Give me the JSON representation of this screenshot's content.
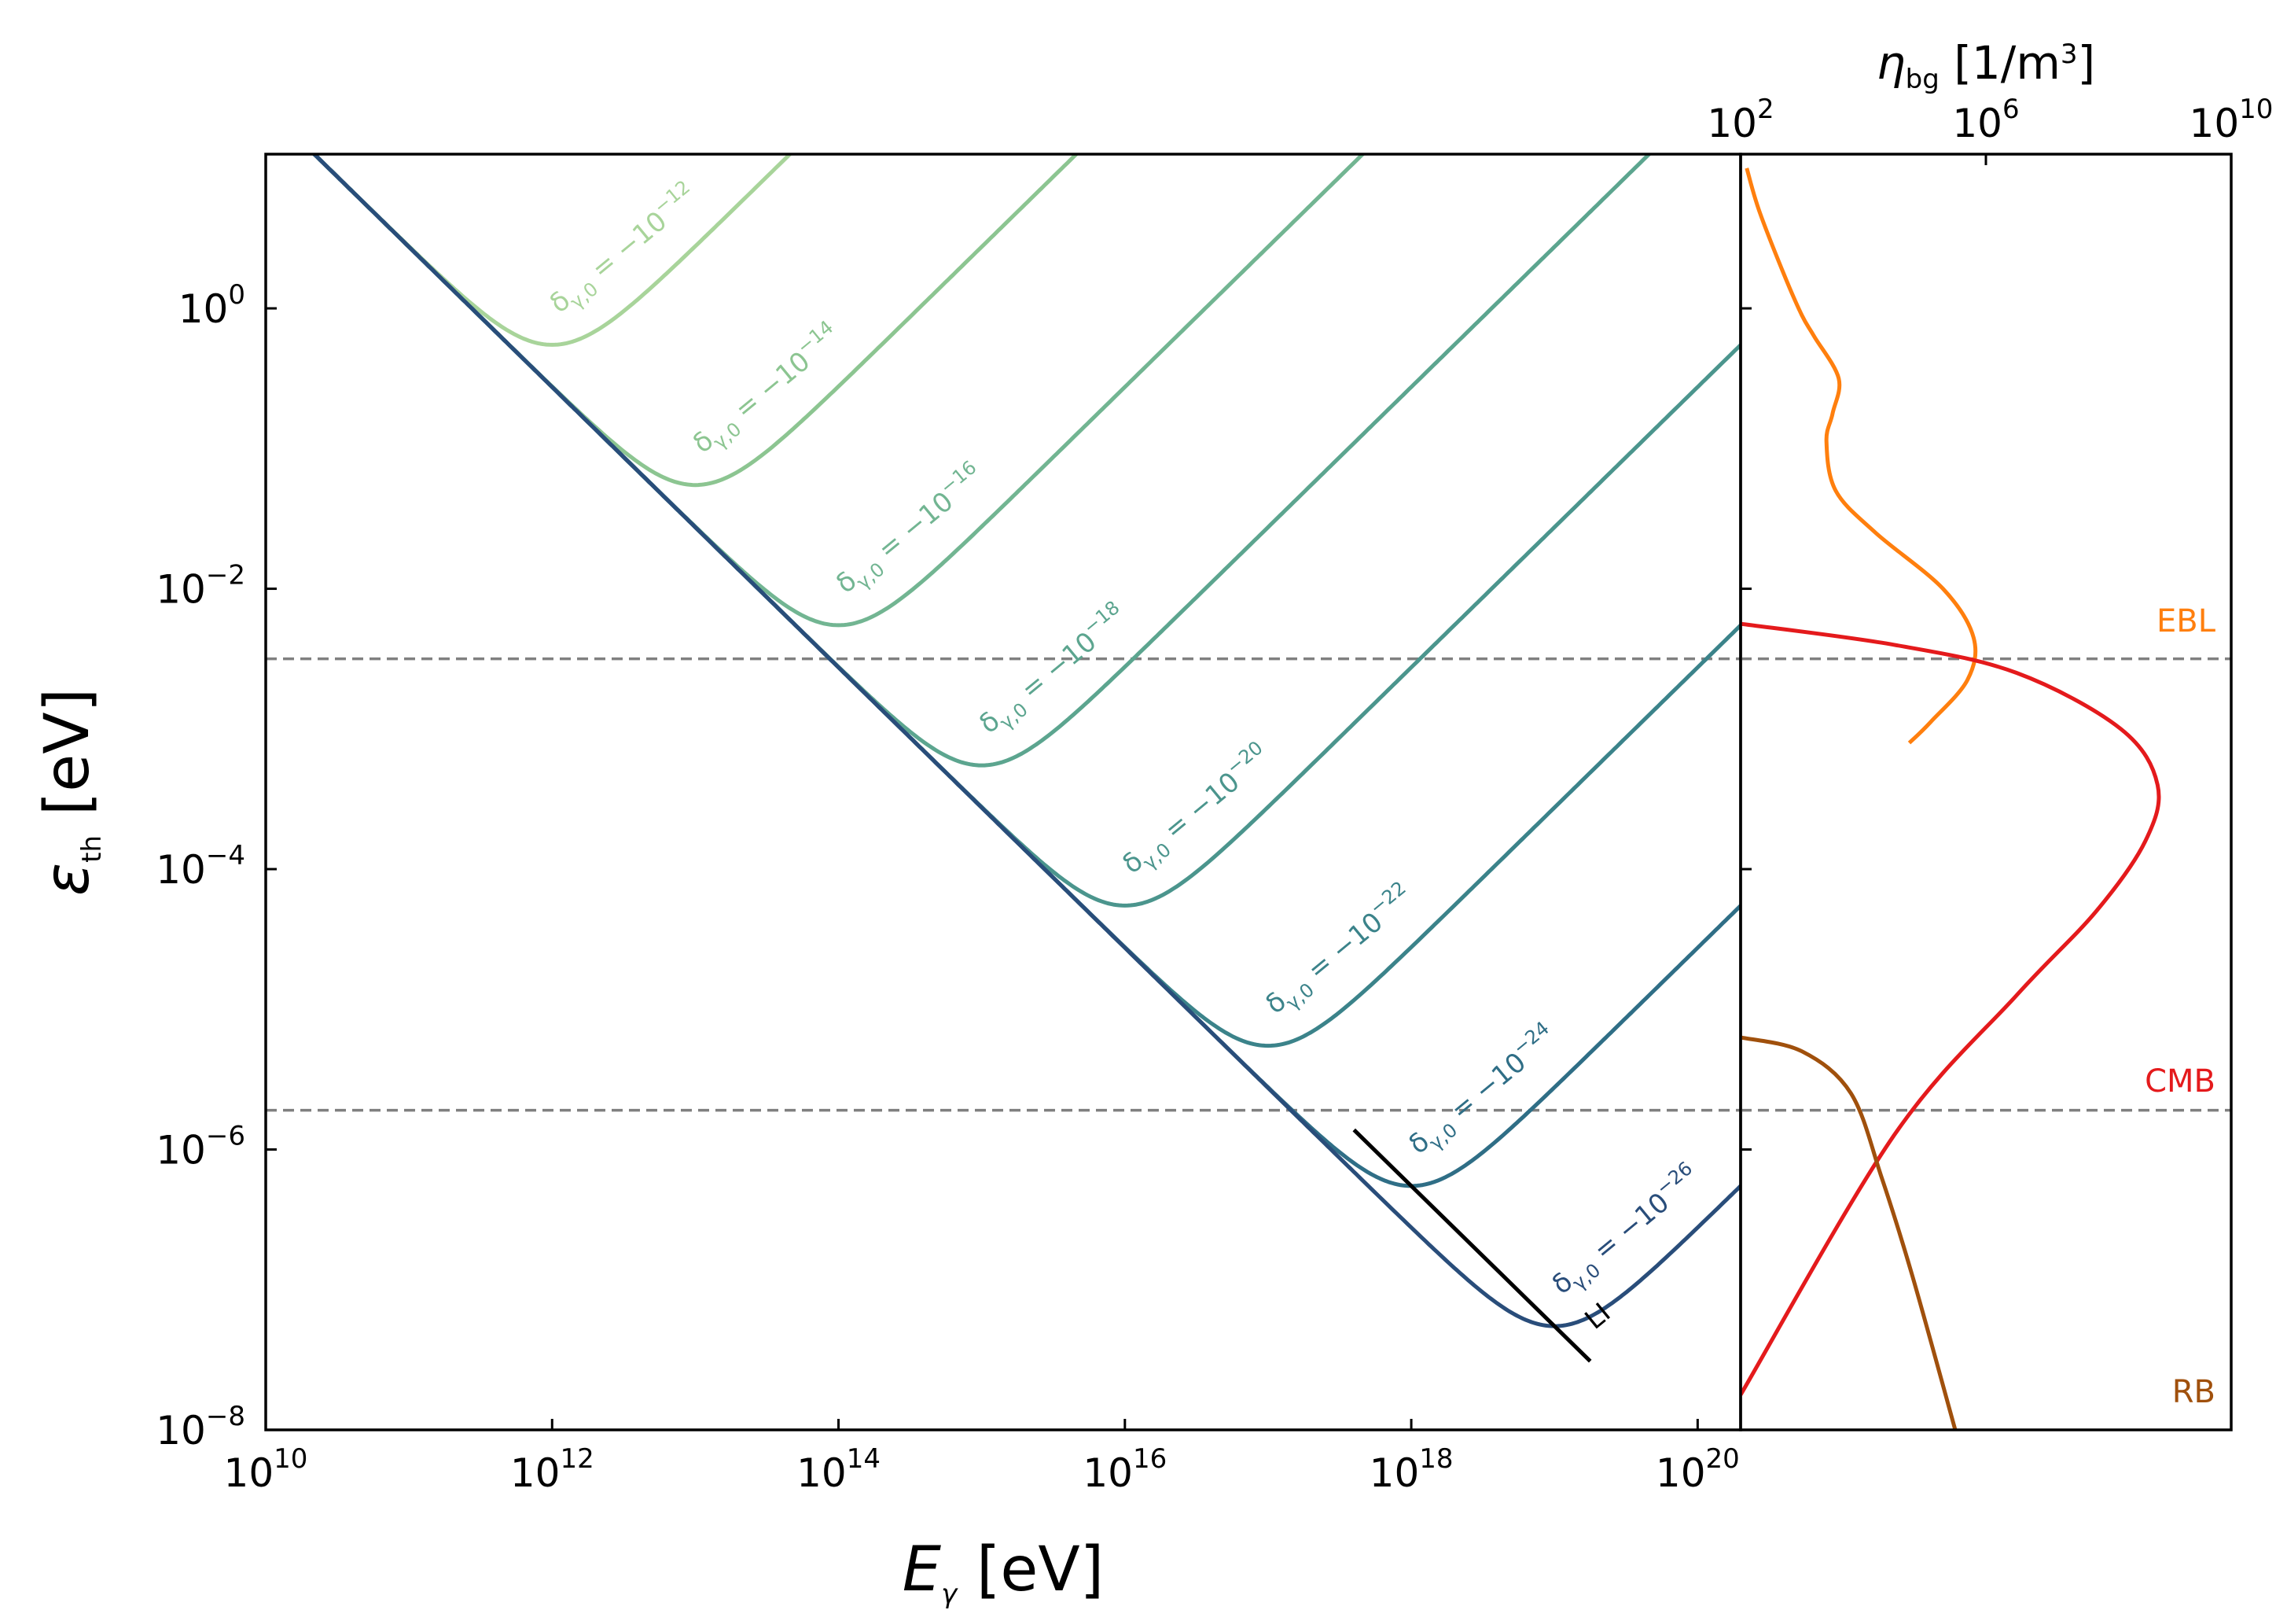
{
  "chart_data": [
    {
      "id": "main",
      "type": "line",
      "xlabel": "E_γ [eV]",
      "ylabel": "ε_th [eV]",
      "xscale": "log",
      "yscale": "log",
      "xlim_log10": [
        10,
        20.3
      ],
      "ylim_log10": [
        -8,
        1.1
      ],
      "x_ticks": [
        {
          "base": "10",
          "exp": "10"
        },
        {
          "base": "10",
          "exp": "12"
        },
        {
          "base": "10",
          "exp": "14"
        },
        {
          "base": "10",
          "exp": "16"
        },
        {
          "base": "10",
          "exp": "18"
        },
        {
          "base": "10",
          "exp": "20"
        }
      ],
      "y_ticks": [
        {
          "base": "10",
          "exp": "0"
        },
        {
          "base": "10",
          "exp": "−2"
        },
        {
          "base": "10",
          "exp": "−4"
        },
        {
          "base": "10",
          "exp": "−6"
        },
        {
          "base": "10",
          "exp": "−8"
        }
      ],
      "hlines_log10": [
        -2.5,
        -5.72
      ],
      "hline_color": "#808080",
      "li_line": {
        "label": "LI",
        "color": "#000000",
        "slope": -1,
        "intercept_log10": 11.74,
        "x_end_log10": 19.25
      },
      "series": [
        {
          "delta_exp": -12,
          "label_prefix": "δ",
          "label_sub": "γ,0",
          "label_eq": " = −10",
          "label_exp": "−12",
          "color": "#a8d49a",
          "x_min_log10": 12,
          "y_min_log10": -0.26
        },
        {
          "delta_exp": -14,
          "label_prefix": "δ",
          "label_sub": "γ,0",
          "label_eq": " = −10",
          "label_exp": "−14",
          "color": "#8cc591",
          "x_min_log10": 13,
          "y_min_log10": -1.26
        },
        {
          "delta_exp": -16,
          "label_prefix": "δ",
          "label_sub": "γ,0",
          "label_eq": " = −10",
          "label_exp": "−16",
          "color": "#72b592",
          "x_min_log10": 14,
          "y_min_log10": -2.26
        },
        {
          "delta_exp": -18,
          "label_prefix": "δ",
          "label_sub": "γ,0",
          "label_eq": " = −10",
          "label_exp": "−18",
          "color": "#5ca58f",
          "x_min_log10": 15,
          "y_min_log10": -3.26
        },
        {
          "delta_exp": -20,
          "label_prefix": "δ",
          "label_sub": "γ,0",
          "label_eq": " = −10",
          "label_exp": "−20",
          "color": "#4b958d",
          "x_min_log10": 16,
          "y_min_log10": -4.26
        },
        {
          "delta_exp": -22,
          "label_prefix": "δ",
          "label_sub": "γ,0",
          "label_eq": " = −10",
          "label_exp": "−22",
          "color": "#3b838a",
          "x_min_log10": 17,
          "y_min_log10": -5.26
        },
        {
          "delta_exp": -24,
          "label_prefix": "δ",
          "label_sub": "γ,0",
          "label_eq": " = −10",
          "label_exp": "−24",
          "color": "#2f6e86",
          "x_min_log10": 18,
          "y_min_log10": -6.26
        },
        {
          "delta_exp": -26,
          "label_prefix": "δ",
          "label_sub": "γ,0",
          "label_eq": " = −10",
          "label_exp": "−26",
          "color": "#294d7a",
          "x_min_log10": 19,
          "y_min_log10": -7.26
        }
      ]
    },
    {
      "id": "side",
      "type": "line",
      "xlabel_symbol": "η",
      "xlabel_sub": "bg",
      "xlabel_unit": " [1/m",
      "xlabel_unit_exp": "3",
      "xlabel_unit_close": "]",
      "xscale": "log",
      "xlim_log10": [
        2,
        10
      ],
      "shares_y_with": "main",
      "x_ticks": [
        {
          "base": "10",
          "exp": "2"
        },
        {
          "base": "10",
          "exp": "6"
        },
        {
          "base": "10",
          "exp": "10"
        }
      ],
      "series": [
        {
          "name": "EBL",
          "color": "#ff7f0e",
          "points_log10": [
            [
              2.1,
              1.0
            ],
            [
              2.3,
              0.7
            ],
            [
              2.7,
              0.25
            ],
            [
              3.0,
              -0.05
            ],
            [
              3.2,
              -0.2
            ],
            [
              3.6,
              -0.5
            ],
            [
              3.5,
              -0.75
            ],
            [
              3.4,
              -0.95
            ],
            [
              3.55,
              -1.3
            ],
            [
              4.2,
              -1.6
            ],
            [
              5.3,
              -2.0
            ],
            [
              5.8,
              -2.35
            ],
            [
              5.7,
              -2.65
            ],
            [
              5.1,
              -2.95
            ],
            [
              4.75,
              -3.1
            ]
          ]
        },
        {
          "name": "CMB",
          "color": "#e41a1c",
          "points_log10": [
            [
              2.0,
              -2.25
            ],
            [
              4.5,
              -2.4
            ],
            [
              6.5,
              -2.6
            ],
            [
              8.2,
              -3.0
            ],
            [
              8.8,
              -3.4
            ],
            [
              8.6,
              -3.8
            ],
            [
              7.8,
              -4.3
            ],
            [
              6.5,
              -4.9
            ],
            [
              4.5,
              -5.9
            ],
            [
              2.0,
              -7.75
            ]
          ]
        },
        {
          "name": "RB",
          "color": "#a0500c",
          "points_log10": [
            [
              2.0,
              -5.2
            ],
            [
              3.0,
              -5.3
            ],
            [
              3.8,
              -5.6
            ],
            [
              4.3,
              -6.2
            ],
            [
              4.8,
              -6.9
            ],
            [
              5.5,
              -8.0
            ]
          ]
        }
      ],
      "band_labels": [
        {
          "text": "EBL",
          "color": "#ff7f0e"
        },
        {
          "text": "CMB",
          "color": "#e41a1c"
        },
        {
          "text": "RB",
          "color": "#a0500c"
        }
      ]
    }
  ]
}
